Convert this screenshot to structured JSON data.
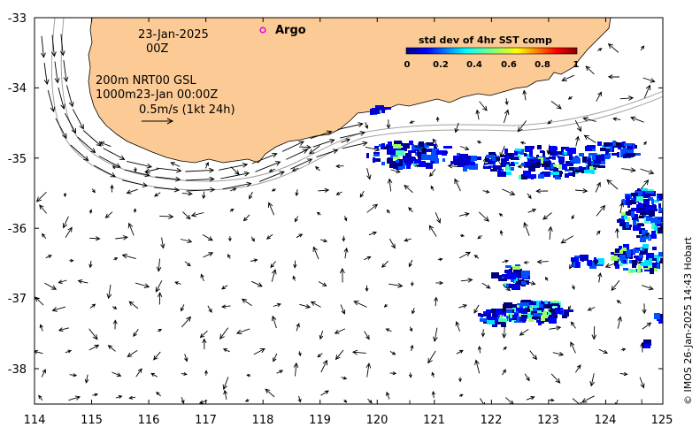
{
  "map": {
    "date_line": "23-Jan-2025",
    "time_line": "00Z",
    "argo_label": "Argo",
    "isobath_line1": "200m  NRT00 GSL",
    "isobath_line2": "1000m23-Jan 00:00Z",
    "scale_label": "0.5m/s (1kt 24h)",
    "credit": "© IMOS 26-Jan-2025 14:43 Hobart",
    "lon_range": [
      114,
      125
    ],
    "lat_range": [
      -38.55,
      -33
    ],
    "x_ticks": [
      "114",
      "115",
      "116",
      "117",
      "118",
      "119",
      "120",
      "121",
      "122",
      "123",
      "124",
      "125"
    ],
    "y_ticks": [
      "-33",
      "-34",
      "-35",
      "-36",
      "-37",
      "-38"
    ],
    "colors": {
      "land": "#fcca94",
      "coast": "#000000",
      "argo_marker": "#e000e0",
      "isobath": "#a0a0a0",
      "arrow": "#000000"
    }
  },
  "colorbar": {
    "title": "std dev of 4hr SST comp",
    "ticks": [
      "0",
      "0.2",
      "0.4",
      "0.6",
      "0.8",
      "1"
    ],
    "range": [
      0,
      1
    ],
    "colormap": "jet"
  }
}
